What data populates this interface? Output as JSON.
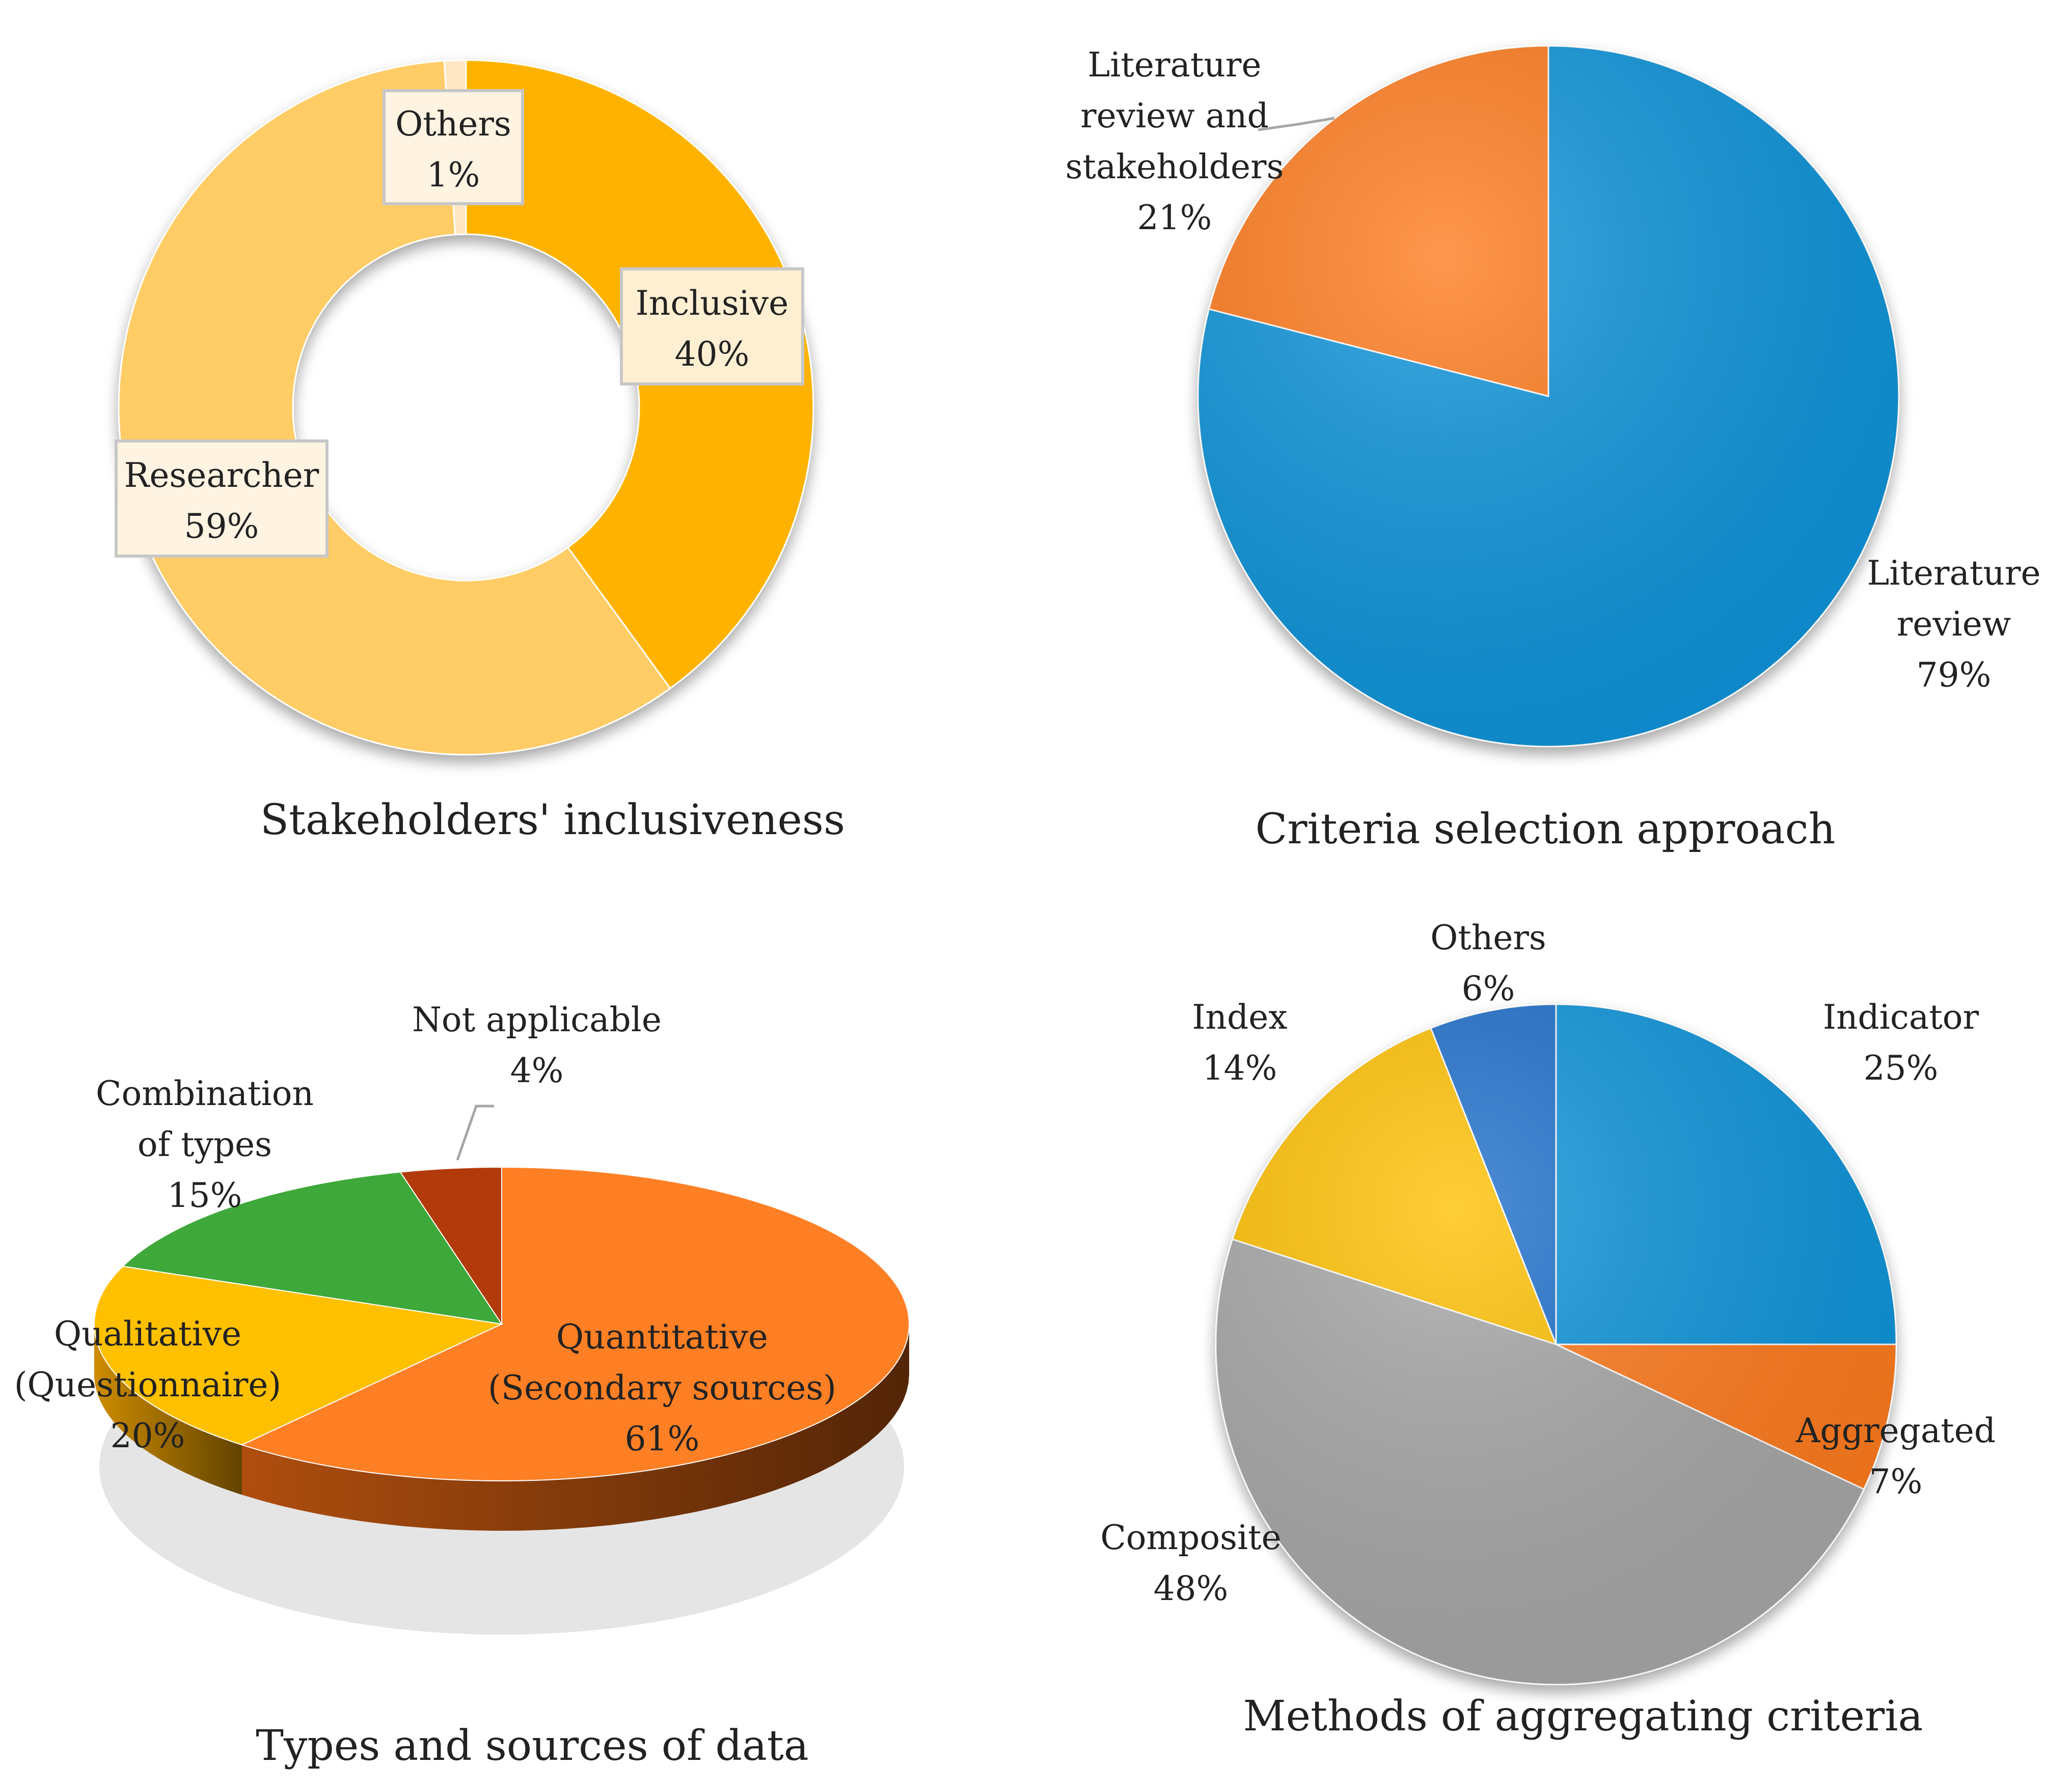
{
  "chart_data": [
    {
      "id": "stakeholders",
      "type": "pie",
      "variant": "donut",
      "title": "Stakeholders' inclusiveness",
      "categories": [
        "Inclusive",
        "Researcher",
        "Others"
      ],
      "values": [
        40,
        59,
        1
      ],
      "value_labels": [
        "40%",
        "59%",
        "1%"
      ],
      "colors": [
        "#FFB300",
        "#FFCC66",
        "#FFE7C4"
      ]
    },
    {
      "id": "criteria",
      "type": "pie",
      "title": "Criteria selection approach",
      "categories": [
        "Literature review",
        "Literature review and stakeholders"
      ],
      "values": [
        79,
        21
      ],
      "value_labels": [
        "79%",
        "21%"
      ],
      "colors": [
        "#0E94DA",
        "#FF7A1A"
      ]
    },
    {
      "id": "datatypes",
      "type": "pie",
      "variant": "3d",
      "title": "Types and sources of data",
      "categories": [
        "Quantitative (Secondary sources)",
        "Qualitative (Questionnaire)",
        "Combination of types",
        "Not applicable"
      ],
      "values": [
        61,
        20,
        15,
        4
      ],
      "value_labels": [
        "61%",
        "20%",
        "15%",
        "4%"
      ],
      "colors": [
        "#FF7F24",
        "#FFC000",
        "#3EA83A",
        "#B23A0A"
      ]
    },
    {
      "id": "methods",
      "type": "pie",
      "title": "Methods of aggregating criteria",
      "categories": [
        "Indicator",
        "Aggregated",
        "Composite",
        "Index",
        "Others"
      ],
      "values": [
        25,
        7,
        48,
        14,
        6
      ],
      "value_labels": [
        "25%",
        "7%",
        "48%",
        "14%",
        "6%"
      ],
      "colors": [
        "#0E94DA",
        "#FF7A1A",
        "#A7A7A7",
        "#FFC000",
        "#1F6ECB"
      ]
    }
  ],
  "labels": {
    "stakeholders": {
      "inclusive": [
        "Inclusive",
        "40%"
      ],
      "researcher": [
        "Researcher",
        "59%"
      ],
      "others": [
        "Others",
        "1%"
      ]
    },
    "criteria": {
      "lit": [
        "Literature",
        "review",
        "79%"
      ],
      "litstake": [
        "Literature",
        "review and",
        "stakeholders",
        "21%"
      ]
    },
    "datatypes": {
      "quant": [
        "Quantitative",
        "(Secondary sources)",
        "61%"
      ],
      "qual": [
        "Qualitative",
        "(Questionnaire)",
        "20%"
      ],
      "combo": [
        "Combination",
        "of types",
        "15%"
      ],
      "na": [
        "Not applicable",
        "4%"
      ]
    },
    "methods": {
      "indicator": [
        "Indicator",
        "25%"
      ],
      "aggregated": [
        "Aggregated",
        "7%"
      ],
      "composite": [
        "Composite",
        "48%"
      ],
      "index": [
        "Index",
        "14%"
      ],
      "others": [
        "Others",
        "6%"
      ]
    }
  }
}
